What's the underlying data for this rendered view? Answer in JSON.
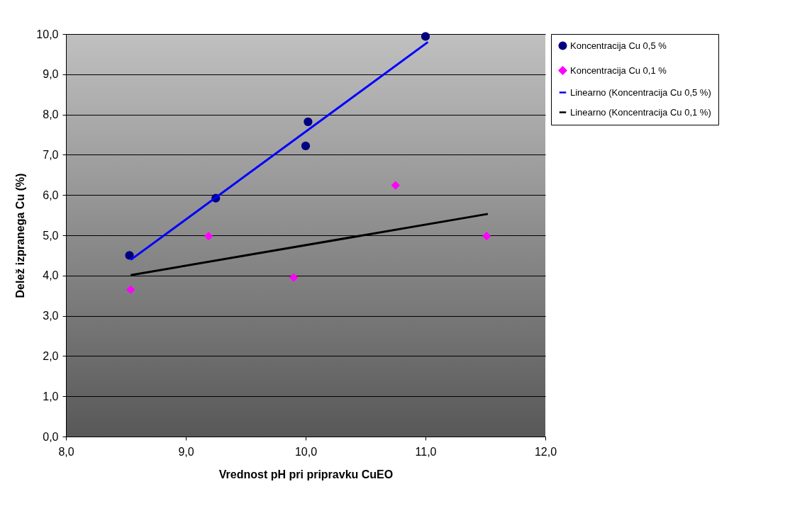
{
  "chart_data": {
    "type": "scatter",
    "xlabel": "Vrednost pH pri pripravku CuEO",
    "ylabel": "Delež izpranega Cu (%)",
    "xlim": [
      8,
      12
    ],
    "xticks": [
      {
        "value": 8,
        "label": "8,0"
      },
      {
        "value": 9,
        "label": "9,0"
      },
      {
        "value": 10,
        "label": "10,0"
      },
      {
        "value": 11,
        "label": "11,0"
      },
      {
        "value": 12,
        "label": "12,0"
      }
    ],
    "ylim": [
      0,
      10
    ],
    "yticks": [
      {
        "value": 0,
        "label": "0,0"
      },
      {
        "value": 1,
        "label": "1,0"
      },
      {
        "value": 2,
        "label": "2,0"
      },
      {
        "value": 3,
        "label": "3,0"
      },
      {
        "value": 4,
        "label": "4,0"
      },
      {
        "value": 5,
        "label": "5,0"
      },
      {
        "value": 6,
        "label": "6,0"
      },
      {
        "value": 7,
        "label": "7,0"
      },
      {
        "value": 8,
        "label": "8,0"
      },
      {
        "value": 9,
        "label": "9,0"
      },
      {
        "value": 10,
        "label": "10,0"
      }
    ],
    "grid": "y",
    "legend": "right",
    "series": [
      {
        "name": "Koncentracija Cu 0,5 %",
        "marker": "circle",
        "color": "#000080",
        "x": [
          8.53,
          9.25,
          10.0,
          10.02,
          11.0
        ],
        "values": [
          4.5,
          5.92,
          7.22,
          7.82,
          9.94
        ]
      },
      {
        "name": "Koncentracija Cu 0,1 %",
        "marker": "diamond",
        "color": "#ff00ff",
        "x": [
          8.54,
          9.19,
          9.9,
          10.75,
          11.51
        ],
        "values": [
          3.65,
          4.98,
          3.95,
          6.24,
          4.98
        ]
      },
      {
        "name": "Linearno (Koncentracija Cu 0,5 %)",
        "type": "line",
        "color": "#0000ff",
        "x": [
          8.54,
          11.02
        ],
        "values": [
          4.39,
          9.8
        ]
      },
      {
        "name": "Linearno (Koncentracija Cu 0,1 %)",
        "type": "line",
        "color": "#000000",
        "x": [
          8.54,
          11.52
        ],
        "values": [
          4.01,
          5.53
        ]
      }
    ]
  }
}
